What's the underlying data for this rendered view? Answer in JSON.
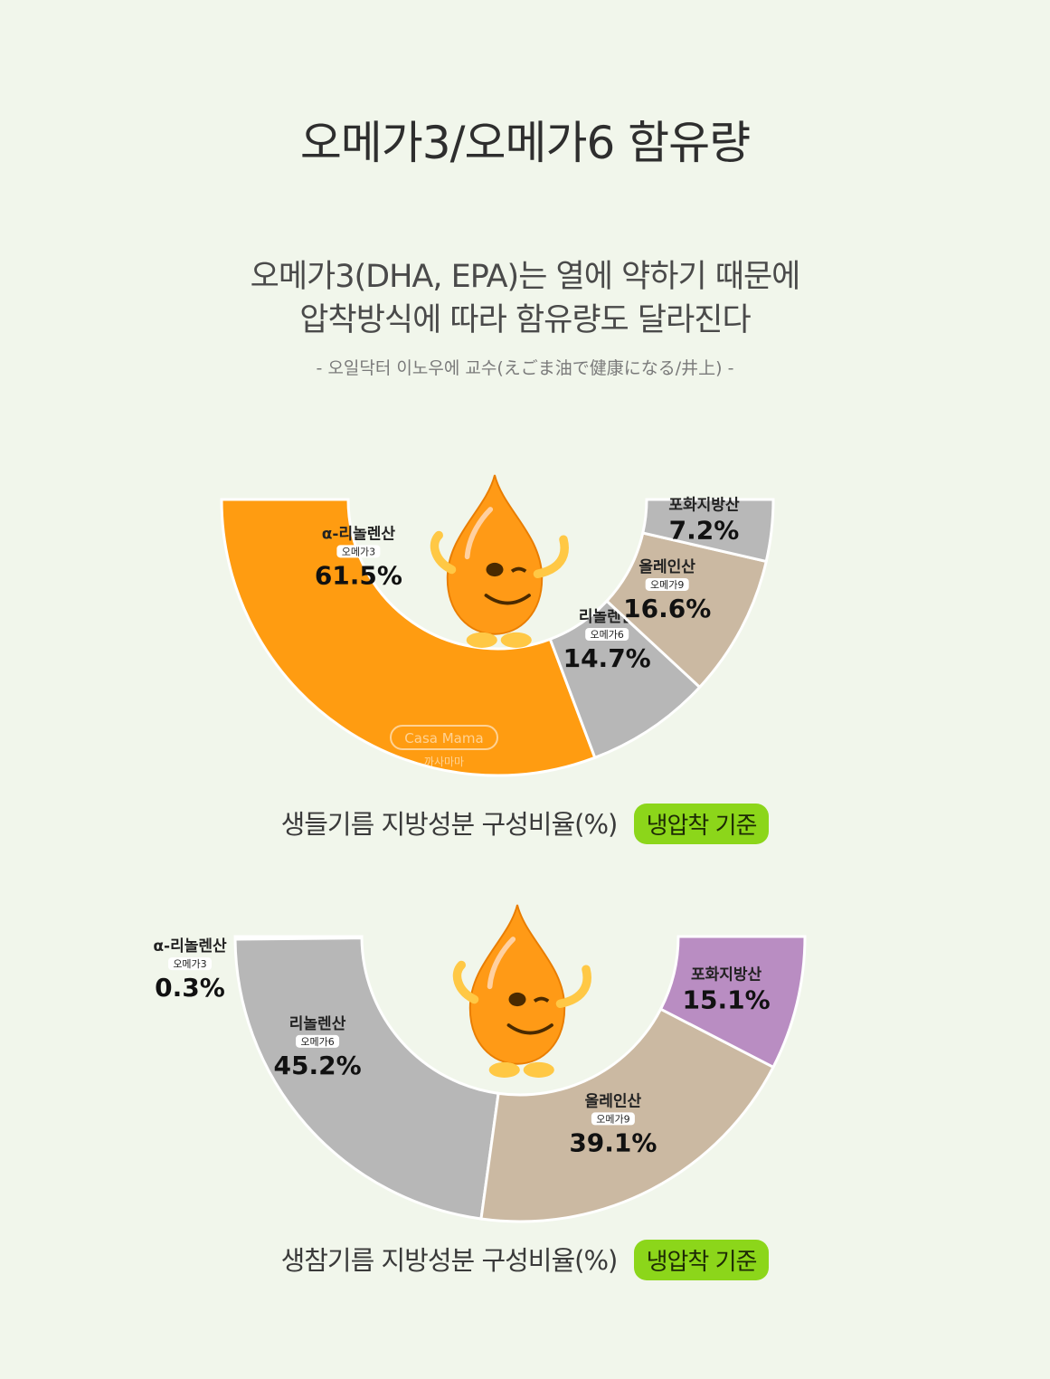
{
  "title": "오메가3/오메가6 함유량",
  "subtitle_line1": "오메가3(DHA, EPA)는 열에 약하기 때문에",
  "subtitle_line2": "압착방식에 따라 함유량도 달라진다",
  "source": "- 오일닥터 이노우에 교수(えごま油で健康になる/井上) -",
  "watermark": {
    "brand": "Casa Mama",
    "korean": "까사마마"
  },
  "colors": {
    "badge": "#8cd61a",
    "background": "#f1f6eb"
  },
  "chart_data": [
    {
      "type": "pie",
      "caption": "생들기름 지방성분 구성비율(%)",
      "badge": "냉압착 기준",
      "slices": [
        {
          "name": "α-리놀렌산",
          "tag": "오메가3",
          "value": 61.5,
          "label": "61.5%",
          "color": "#ff9c11"
        },
        {
          "name": "리놀렌산",
          "tag": "오메가6",
          "value": 14.7,
          "label": "14.7%",
          "color": "#b7b7b7"
        },
        {
          "name": "올레인산",
          "tag": "오메가9",
          "value": 16.6,
          "label": "16.6%",
          "color": "#cbb9a2"
        },
        {
          "name": "포화지방산",
          "tag": "",
          "value": 7.2,
          "label": "7.2%",
          "color": "#b8b8b8"
        }
      ]
    },
    {
      "type": "pie",
      "caption": "생참기름 지방성분 구성비율(%)",
      "badge": "냉압착 기준",
      "slices": [
        {
          "name": "α-리놀렌산",
          "tag": "오메가3",
          "value": 0.3,
          "label": "0.3%",
          "color": "#ff9c11"
        },
        {
          "name": "리놀렌산",
          "tag": "오메가6",
          "value": 45.2,
          "label": "45.2%",
          "color": "#b7b7b7"
        },
        {
          "name": "올레인산",
          "tag": "오메가9",
          "value": 39.1,
          "label": "39.1%",
          "color": "#cbb9a2"
        },
        {
          "name": "포화지방산",
          "tag": "",
          "value": 15.1,
          "label": "15.1%",
          "color": "#b98dc2"
        }
      ]
    }
  ]
}
